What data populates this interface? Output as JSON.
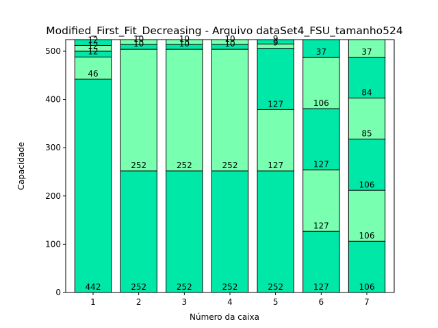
{
  "chart_data": {
    "type": "bar",
    "subtype": "stacked",
    "title": "Modified_First_Fit_Decreasing - Arquivo dataSet4_FSU_tamanho524",
    "xlabel": "Número da caixa",
    "ylabel": "Capacidade",
    "ylim": [
      0,
      524
    ],
    "yticks": [
      0,
      100,
      200,
      300,
      400,
      500
    ],
    "grid": false,
    "colors": {
      "dark": "#00e8a8",
      "light": "#78ffb0",
      "edge": "#000000"
    },
    "categories": [
      "1",
      "2",
      "3",
      "4",
      "5",
      "6",
      "7"
    ],
    "stacks": [
      [
        442,
        46,
        12,
        12,
        12
      ],
      [
        252,
        252,
        10,
        10
      ],
      [
        252,
        252,
        10,
        10
      ],
      [
        252,
        252,
        10,
        10
      ],
      [
        252,
        127,
        127,
        9,
        9
      ],
      [
        127,
        127,
        127,
        106,
        37
      ],
      [
        106,
        106,
        106,
        85,
        84,
        37
      ]
    ]
  }
}
